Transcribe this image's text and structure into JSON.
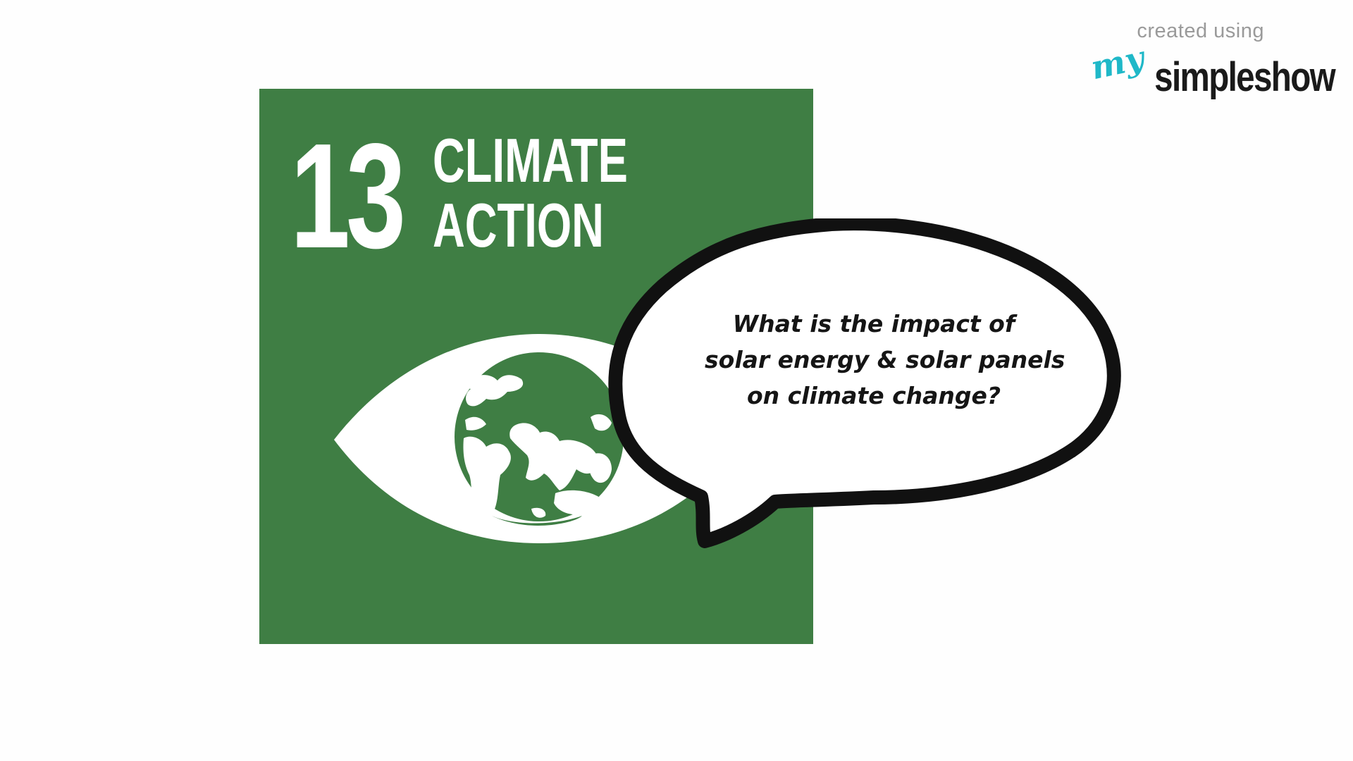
{
  "watermark": {
    "created_label": "created using",
    "brand_prefix": "my",
    "brand_name": "simpleshow"
  },
  "sdg": {
    "number": "13",
    "title_line1": "CLIMATE",
    "title_line2": "ACTION",
    "icon": "eye-globe-icon",
    "tile_color": "#3f7e44"
  },
  "speech_bubble": {
    "line1": "What is the impact of",
    "line2": "solar energy & solar panels",
    "line3": "on climate change?"
  }
}
